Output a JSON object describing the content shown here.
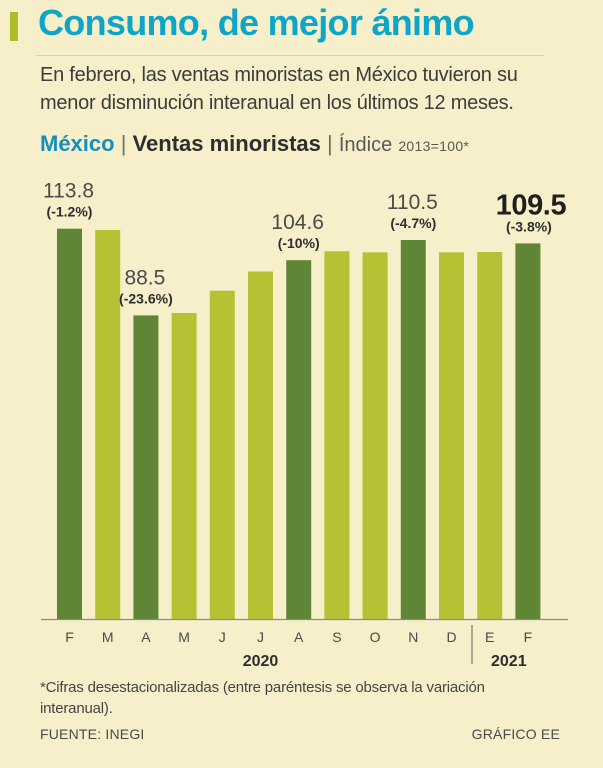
{
  "header": {
    "title": "Consumo, de mejor ánimo",
    "subtitle": "En febrero, las ventas minoristas en México tuvieron su menor disminución interanual en los últimos 12 meses."
  },
  "chart_header": {
    "country": "México",
    "separator": "|",
    "series": "Ventas minoristas",
    "index_label": "Índice",
    "base": "2013=100*"
  },
  "chart_data": {
    "type": "bar",
    "title": "Ventas minoristas",
    "subtitle": "Índice 2013=100*",
    "xlabel": "",
    "ylabel": "Índice 2013=100",
    "ylim": [
      0,
      122
    ],
    "grid": false,
    "categories": [
      "F",
      "M",
      "A",
      "M",
      "J",
      "J",
      "A",
      "S",
      "O",
      "N",
      "D",
      "E",
      "F"
    ],
    "values": [
      113.8,
      113.4,
      88.5,
      89.2,
      95.7,
      101.3,
      104.6,
      107.2,
      106.9,
      110.5,
      106.9,
      107.0,
      109.5
    ],
    "highlighted": [
      true,
      false,
      true,
      false,
      false,
      false,
      true,
      false,
      false,
      true,
      false,
      false,
      true
    ],
    "value_labels": [
      {
        "index": 0,
        "value": "113.8",
        "change": "(-1.2%)",
        "emphasis": false
      },
      {
        "index": 2,
        "value": "88.5",
        "change": "(-23.6%)",
        "emphasis": false
      },
      {
        "index": 6,
        "value": "104.6",
        "change": "(-10%)",
        "emphasis": false
      },
      {
        "index": 9,
        "value": "110.5",
        "change": "(-4.7%)",
        "emphasis": false
      },
      {
        "index": 12,
        "value": "109.5",
        "change": "(-3.8%)",
        "emphasis": true
      }
    ],
    "year_groups": [
      {
        "label": "2020",
        "start": 0,
        "end": 10
      },
      {
        "label": "2021",
        "start": 11,
        "end": 12
      }
    ],
    "colors": {
      "highlight": "#5f8536",
      "default": "#b8c134",
      "axis": "#8b8b82"
    }
  },
  "footer": {
    "note": "*Cifras desestacionalizadas (entre paréntesis se observa la variación interanual).",
    "source": "FUENTE: INEGI",
    "credit": "GRÁFICO EE"
  }
}
